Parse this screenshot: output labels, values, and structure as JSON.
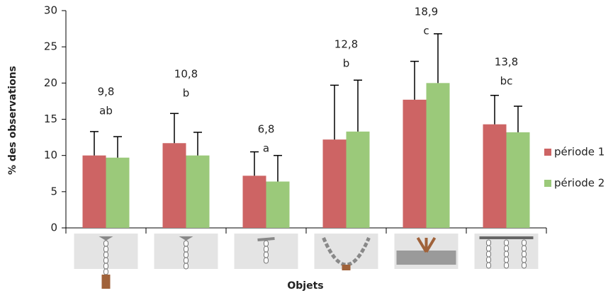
{
  "chart_data": {
    "type": "bar",
    "ylabel": "% des observations",
    "xlabel": "Objets",
    "categories": [
      null,
      null,
      null,
      null,
      null,
      null
    ],
    "series": [
      {
        "name": "période 1",
        "color": "#cd6464",
        "values": [
          10.0,
          11.7,
          7.2,
          12.2,
          17.7,
          14.3
        ],
        "errors": [
          3.3,
          4.1,
          3.3,
          7.5,
          5.3,
          4.0
        ]
      },
      {
        "name": "période 2",
        "color": "#9bc97a",
        "values": [
          9.7,
          10.0,
          6.4,
          13.3,
          20.0,
          13.2
        ],
        "errors": [
          2.9,
          3.2,
          3.6,
          7.1,
          6.8,
          3.6
        ]
      }
    ],
    "annotations": [
      {
        "mean": "9,8",
        "letter": "ab"
      },
      {
        "mean": "10,8",
        "letter": "b"
      },
      {
        "mean": "6,8",
        "letter": "a"
      },
      {
        "mean": "12,8",
        "letter": "b"
      },
      {
        "mean": "18,9",
        "letter": "c"
      },
      {
        "mean": "13,8",
        "letter": "bc"
      }
    ],
    "ylim": [
      0,
      30
    ],
    "yticks": [
      0,
      5,
      10,
      15,
      20,
      25,
      30
    ],
    "grid": false,
    "legend": "right"
  }
}
